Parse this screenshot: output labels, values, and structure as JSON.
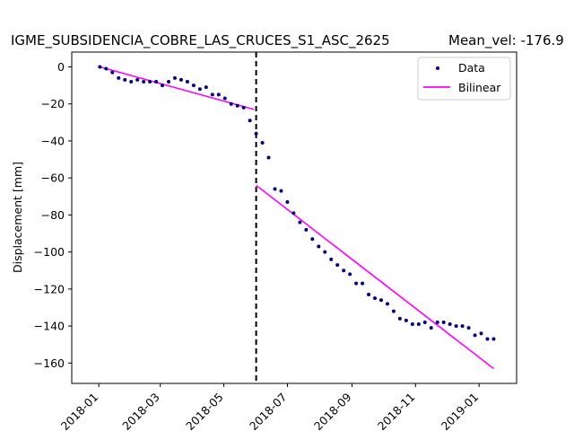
{
  "chart_data": {
    "type": "line",
    "title": "IGME_SUBSIDENCIA_COBRE_LAS_CRUCES_S1_ASC_2625",
    "subtitle": "Mean_vel: -176.9",
    "xlabel": "",
    "ylabel": "Displacement [mm]",
    "xlim": [
      "2017-12-06",
      "2019-02-06"
    ],
    "ylim": [
      -171,
      8
    ],
    "x_ticks": [
      "2018-01",
      "2018-03",
      "2018-05",
      "2018-07",
      "2018-09",
      "2018-11",
      "2019-01"
    ],
    "y_ticks": [
      0,
      -20,
      -40,
      -60,
      -80,
      -100,
      -120,
      -140,
      -160
    ],
    "grid": false,
    "legend_position": "upper right",
    "breakpoint_date": "2018-06-01",
    "series": [
      {
        "name": "Data",
        "style": "points",
        "color": "#000080",
        "points": [
          [
            "2018-01-02",
            0
          ],
          [
            "2018-01-08",
            -1
          ],
          [
            "2018-01-14",
            -3
          ],
          [
            "2018-01-20",
            -6
          ],
          [
            "2018-01-26",
            -7
          ],
          [
            "2018-02-01",
            -8
          ],
          [
            "2018-02-07",
            -7
          ],
          [
            "2018-02-13",
            -8
          ],
          [
            "2018-02-19",
            -8
          ],
          [
            "2018-02-25",
            -8
          ],
          [
            "2018-03-03",
            -10
          ],
          [
            "2018-03-09",
            -8
          ],
          [
            "2018-03-15",
            -6
          ],
          [
            "2018-03-21",
            -7
          ],
          [
            "2018-03-27",
            -8
          ],
          [
            "2018-04-02",
            -10
          ],
          [
            "2018-04-08",
            -12
          ],
          [
            "2018-04-14",
            -11
          ],
          [
            "2018-04-20",
            -15
          ],
          [
            "2018-04-26",
            -15
          ],
          [
            "2018-05-02",
            -17
          ],
          [
            "2018-05-08",
            -20
          ],
          [
            "2018-05-14",
            -21
          ],
          [
            "2018-05-20",
            -22
          ],
          [
            "2018-05-26",
            -29
          ],
          [
            "2018-06-01",
            -36
          ],
          [
            "2018-06-07",
            -41
          ],
          [
            "2018-06-13",
            -49
          ],
          [
            "2018-06-19",
            -66
          ],
          [
            "2018-06-25",
            -67
          ],
          [
            "2018-07-01",
            -73
          ],
          [
            "2018-07-07",
            -79
          ],
          [
            "2018-07-13",
            -84
          ],
          [
            "2018-07-19",
            -88
          ],
          [
            "2018-07-25",
            -93
          ],
          [
            "2018-07-31",
            -97
          ],
          [
            "2018-08-06",
            -100
          ],
          [
            "2018-08-12",
            -104
          ],
          [
            "2018-08-18",
            -107
          ],
          [
            "2018-08-24",
            -110
          ],
          [
            "2018-08-30",
            -112
          ],
          [
            "2018-09-05",
            -117
          ],
          [
            "2018-09-11",
            -117
          ],
          [
            "2018-09-17",
            -123
          ],
          [
            "2018-09-23",
            -125
          ],
          [
            "2018-09-29",
            -126
          ],
          [
            "2018-10-05",
            -128
          ],
          [
            "2018-10-11",
            -132
          ],
          [
            "2018-10-17",
            -136
          ],
          [
            "2018-10-23",
            -137
          ],
          [
            "2018-10-29",
            -139
          ],
          [
            "2018-11-04",
            -139
          ],
          [
            "2018-11-10",
            -138
          ],
          [
            "2018-11-16",
            -141
          ],
          [
            "2018-11-22",
            -138
          ],
          [
            "2018-11-28",
            -138
          ],
          [
            "2018-12-04",
            -139
          ],
          [
            "2018-12-10",
            -140
          ],
          [
            "2018-12-16",
            -140
          ],
          [
            "2018-12-22",
            -141
          ],
          [
            "2018-12-28",
            -145
          ],
          [
            "2019-01-03",
            -144
          ],
          [
            "2019-01-09",
            -147
          ],
          [
            "2019-01-15",
            -147
          ]
        ]
      },
      {
        "name": "Bilinear",
        "style": "line",
        "color": "#ff00ff",
        "segments": [
          [
            [
              "2018-01-02",
              0
            ],
            [
              "2018-05-30",
              -23
            ]
          ],
          [
            "2018-06-01",
            -64
          ],
          [
            "2019-01-15",
            -163
          ]
        ]
      }
    ]
  }
}
